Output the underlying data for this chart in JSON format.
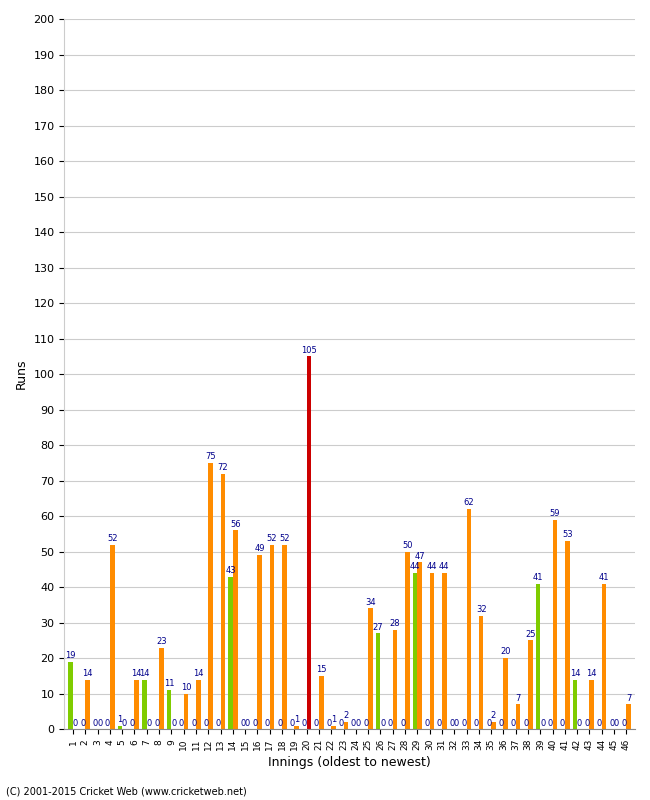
{
  "xlabel": "Innings (oldest to newest)",
  "ylabel": "Runs",
  "ylim": [
    0,
    200
  ],
  "yticks": [
    0,
    10,
    20,
    30,
    40,
    50,
    60,
    70,
    80,
    90,
    100,
    110,
    120,
    130,
    140,
    150,
    160,
    170,
    180,
    190,
    200
  ],
  "innings": [
    "1",
    "2",
    "3",
    "4",
    "5",
    "6",
    "7",
    "8",
    "9",
    "10",
    "11",
    "12",
    "13",
    "14",
    "15",
    "16",
    "17",
    "18",
    "19",
    "20",
    "21",
    "22",
    "23",
    "24",
    "25",
    "26",
    "27",
    "28",
    "29",
    "30",
    "31",
    "32",
    "33",
    "34",
    "35",
    "36",
    "37",
    "38",
    "39",
    "40",
    "41",
    "42",
    "43",
    "44",
    "45",
    "46"
  ],
  "green_vals": [
    19,
    0,
    0,
    0,
    1,
    0,
    14,
    0,
    11,
    0,
    0,
    0,
    0,
    43,
    0,
    0,
    0,
    0,
    0,
    0,
    0,
    0,
    0,
    0,
    0,
    27,
    0,
    0,
    44,
    0,
    0,
    0,
    0,
    0,
    0,
    0,
    0,
    0,
    41,
    0,
    0,
    14,
    0,
    0,
    0,
    0
  ],
  "orange_vals": [
    0,
    14,
    0,
    52,
    0,
    14,
    0,
    23,
    0,
    10,
    14,
    75,
    72,
    56,
    0,
    49,
    52,
    52,
    1,
    105,
    15,
    1,
    2,
    0,
    34,
    0,
    28,
    50,
    47,
    44,
    44,
    0,
    62,
    32,
    2,
    20,
    7,
    25,
    0,
    59,
    53,
    0,
    14,
    41,
    0,
    7
  ],
  "is_red": [
    false,
    false,
    false,
    false,
    false,
    false,
    false,
    false,
    false,
    false,
    false,
    false,
    false,
    false,
    false,
    false,
    false,
    false,
    false,
    true,
    false,
    false,
    false,
    false,
    false,
    false,
    false,
    false,
    false,
    false,
    false,
    false,
    false,
    false,
    false,
    false,
    false,
    false,
    false,
    false,
    false,
    false,
    false,
    false,
    false,
    false
  ],
  "orange_color": "#FF8C00",
  "green_color": "#7FCC00",
  "red_color": "#CC0000",
  "label_color": "#00008B",
  "background_color": "#FFFFFF",
  "grid_color": "#CCCCCC",
  "copyright": "(C) 2001-2015 Cricket Web (www.cricketweb.net)"
}
